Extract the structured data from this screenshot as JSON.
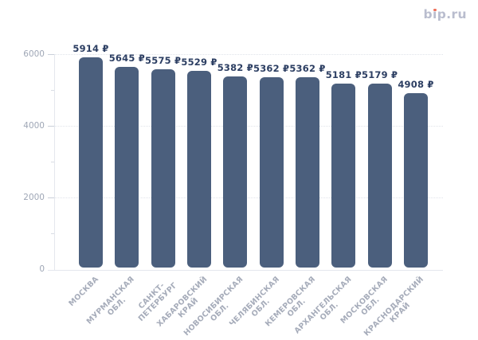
{
  "logo": {
    "text": "bip.ru",
    "segments": [
      "b",
      "ı",
      "p.ru"
    ]
  },
  "chart_data": {
    "type": "bar",
    "title": "",
    "xlabel": "",
    "ylabel": "",
    "categories": [
      "МОСКВА",
      "МУРМАНСКАЯ ОБЛ.",
      "САНКТ-ПЕТЕРБУРГ",
      "ХАБАРОВСКИЙ КРАЙ",
      "НОВОСИБИРСКАЯ ОБЛ.",
      "ЧЕЛЯБИНСКАЯ ОБЛ.",
      "КЕМЕРОВСКАЯ ОБЛ.",
      "АРХАНГЕЛЬСКАЯ ОБЛ.",
      "МОСКОВСКАЯ ОБЛ.",
      "КРАСНОДАРСКИЙ КРАЙ"
    ],
    "category_lines": [
      [
        "МОСКВА"
      ],
      [
        "МУРМАНСКАЯ",
        "ОБЛ."
      ],
      [
        "САНКТ-",
        "ПЕТЕРБУРГ"
      ],
      [
        "ХАБАРОВСКИЙ",
        "КРАЙ"
      ],
      [
        "НОВОСИБИРСКАЯ",
        "ОБЛ."
      ],
      [
        "ЧЕЛЯБИНСКАЯ",
        "ОБЛ."
      ],
      [
        "КЕМЕРОВСКАЯ",
        "ОБЛ."
      ],
      [
        "АРХАНГЕЛЬСКАЯ",
        "ОБЛ."
      ],
      [
        "МОСКОВСКАЯ",
        "ОБЛ."
      ],
      [
        "КРАСНОДАРСКИЙ",
        "КРАЙ"
      ]
    ],
    "values": [
      5914,
      5645,
      5575,
      5529,
      5382,
      5362,
      5362,
      5181,
      5179,
      4908
    ],
    "value_labels": [
      "5914 ₽",
      "5645 ₽",
      "5575 ₽",
      "5529 ₽",
      "5382 ₽",
      "5362 ₽",
      "5362 ₽",
      "5181 ₽",
      "5179 ₽",
      "4908 ₽"
    ],
    "currency": "₽",
    "ylim": [
      0,
      6000
    ],
    "y_ticks": [
      2000,
      4000,
      6000
    ],
    "y_minor_ticks": [
      1000,
      3000,
      5000
    ],
    "y_tick_labels": [
      "0",
      "2000",
      "4000",
      "6000"
    ],
    "grid": "horizontal-dotted",
    "legend": "none"
  },
  "colors": {
    "bar": "#4b5f7d",
    "value_label": "#2d3f63",
    "axis_tick_label": "#9fa7b6",
    "category_label": "#a6acba",
    "gridline": "#e0e3ea",
    "axis_line": "#e4e7ed",
    "logo_text": "#b9bdce",
    "logo_dot": "#ef6f5a",
    "background": "#ffffff"
  }
}
